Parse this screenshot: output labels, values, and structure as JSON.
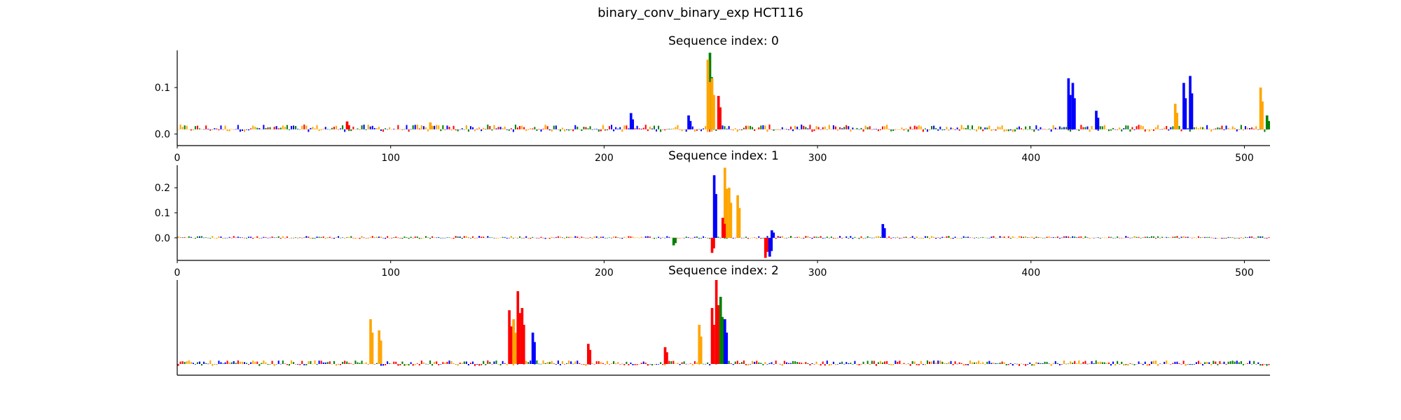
{
  "title": "binary_conv_binary_exp HCT116",
  "colors": {
    "A": "#008000",
    "C": "#0000ff",
    "G": "#ffa500",
    "T": "#ff0000",
    "axis": "#000000"
  },
  "chart_data": [
    {
      "type": "line",
      "title": "Sequence index: 0",
      "xlim": [
        0,
        512
      ],
      "ylim": [
        -0.025,
        0.18
      ],
      "xticks": [
        "0",
        "100",
        "200",
        "300",
        "400",
        "500"
      ],
      "xtick_values": [
        0,
        100,
        200,
        300,
        400,
        500
      ],
      "yticks": [
        "0.0",
        "0.1"
      ],
      "ytick_values": [
        0.0,
        0.1
      ],
      "baseline": 0.01,
      "noise": 0.008,
      "peaks": [
        {
          "x": 79,
          "y": 0.027,
          "base": "T"
        },
        {
          "x": 118,
          "y": 0.025,
          "base": "G"
        },
        {
          "x": 212,
          "y": 0.045,
          "base": "C"
        },
        {
          "x": 239,
          "y": 0.04,
          "base": "C"
        },
        {
          "x": 249,
          "y": 0.175,
          "base": "A"
        },
        {
          "x": 248,
          "y": 0.16,
          "base": "G"
        },
        {
          "x": 250,
          "y": 0.12,
          "base": "G"
        },
        {
          "x": 253,
          "y": 0.082,
          "base": "T"
        },
        {
          "x": 417,
          "y": 0.12,
          "base": "C"
        },
        {
          "x": 419,
          "y": 0.11,
          "base": "C"
        },
        {
          "x": 430,
          "y": 0.05,
          "base": "C"
        },
        {
          "x": 474,
          "y": 0.125,
          "base": "C"
        },
        {
          "x": 471,
          "y": 0.11,
          "base": "C"
        },
        {
          "x": 467,
          "y": 0.065,
          "base": "G"
        },
        {
          "x": 507,
          "y": 0.1,
          "base": "G"
        },
        {
          "x": 510,
          "y": 0.04,
          "base": "A"
        }
      ]
    },
    {
      "type": "line",
      "title": "Sequence index: 1",
      "xlim": [
        0,
        512
      ],
      "ylim": [
        -0.09,
        0.29
      ],
      "xticks": [
        "0",
        "100",
        "200",
        "300",
        "400",
        "500"
      ],
      "xtick_values": [
        0,
        100,
        200,
        300,
        400,
        500
      ],
      "yticks": [
        "0.0",
        "0.1",
        "0.2"
      ],
      "ytick_values": [
        0.0,
        0.1,
        0.2
      ],
      "baseline": 0.0,
      "noise": 0.006,
      "peaks": [
        {
          "x": 251,
          "y": 0.25,
          "base": "C"
        },
        {
          "x": 256,
          "y": 0.28,
          "base": "G"
        },
        {
          "x": 258,
          "y": 0.2,
          "base": "G"
        },
        {
          "x": 262,
          "y": 0.17,
          "base": "G"
        },
        {
          "x": 255,
          "y": 0.08,
          "base": "T"
        },
        {
          "x": 250,
          "y": -0.06,
          "base": "T"
        },
        {
          "x": 275,
          "y": -0.08,
          "base": "T"
        },
        {
          "x": 277,
          "y": -0.075,
          "base": "C"
        },
        {
          "x": 278,
          "y": 0.03,
          "base": "C"
        },
        {
          "x": 330,
          "y": 0.055,
          "base": "C"
        },
        {
          "x": 232,
          "y": -0.03,
          "base": "A"
        }
      ]
    },
    {
      "type": "line",
      "title": "Sequence index: 2",
      "xlim": [
        0,
        512
      ],
      "ylim": [
        -0.01,
        0.075
      ],
      "xticks": [],
      "xtick_values": [],
      "yticks": [],
      "ytick_values": [],
      "baseline": 0.0,
      "noise": 0.0025,
      "peaks": [
        {
          "x": 90,
          "y": 0.04,
          "base": "G"
        },
        {
          "x": 94,
          "y": 0.03,
          "base": "G"
        },
        {
          "x": 159,
          "y": 0.065,
          "base": "T"
        },
        {
          "x": 161,
          "y": 0.05,
          "base": "T"
        },
        {
          "x": 157,
          "y": 0.04,
          "base": "G"
        },
        {
          "x": 155,
          "y": 0.048,
          "base": "T"
        },
        {
          "x": 166,
          "y": 0.028,
          "base": "C"
        },
        {
          "x": 252,
          "y": 0.075,
          "base": "T"
        },
        {
          "x": 254,
          "y": 0.06,
          "base": "A"
        },
        {
          "x": 250,
          "y": 0.05,
          "base": "T"
        },
        {
          "x": 256,
          "y": 0.04,
          "base": "C"
        },
        {
          "x": 244,
          "y": 0.035,
          "base": "G"
        },
        {
          "x": 192,
          "y": 0.018,
          "base": "T"
        },
        {
          "x": 228,
          "y": 0.015,
          "base": "T"
        }
      ]
    }
  ]
}
